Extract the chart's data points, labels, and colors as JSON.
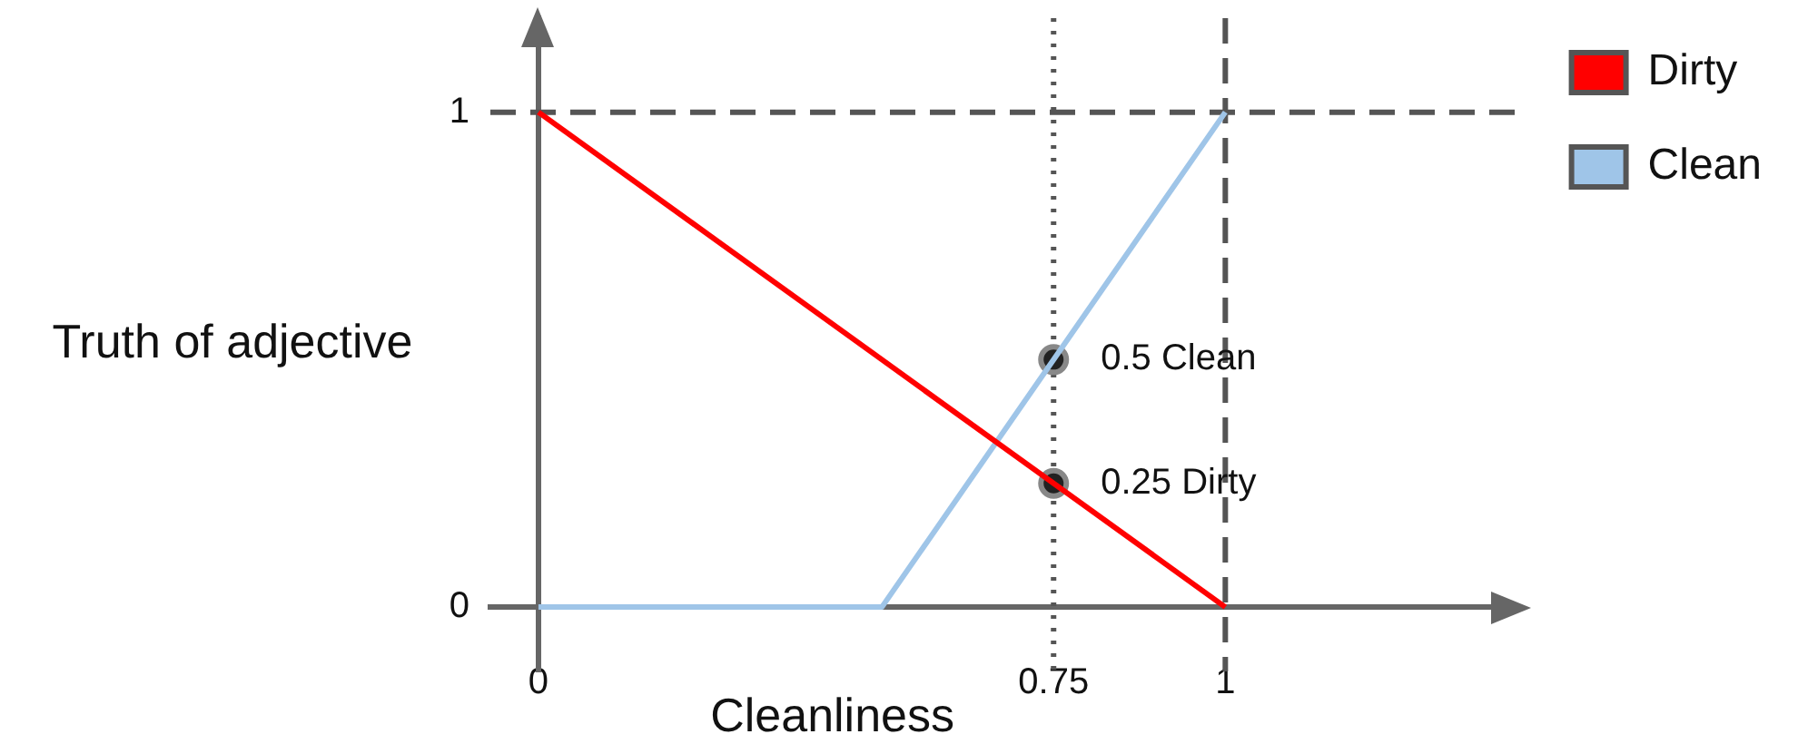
{
  "chart_data": {
    "type": "line",
    "xlabel": "Cleanliness",
    "ylabel": "Truth of adjective",
    "xlim": [
      -0.07,
      1.43
    ],
    "ylim": [
      -0.13,
      1.19
    ],
    "xticks": [
      0,
      0.75,
      1
    ],
    "yticks": [
      0,
      1
    ],
    "grid": false,
    "legend": "right",
    "marker": "none",
    "line_style": "solid",
    "series": [
      {
        "name": "Dirty",
        "color": "#ff0000",
        "x": [
          0,
          1
        ],
        "values": [
          1,
          0
        ]
      },
      {
        "name": "Clean",
        "color": "#9fc5e8",
        "x": [
          0,
          0.5,
          1
        ],
        "values": [
          0,
          0,
          1
        ]
      },
      {
        "type": "scatter",
        "color": "#222222",
        "x": [
          0.75,
          0.75
        ],
        "values": [
          0.5,
          0.25
        ],
        "marker": "circle"
      }
    ],
    "ref_lines": [
      {
        "axis": "y",
        "value": 1,
        "color": "#555555",
        "line_style": "dashed"
      },
      {
        "axis": "x",
        "value": 1,
        "color": "#555555",
        "line_style": "dashed"
      },
      {
        "axis": "x",
        "value": 0.75,
        "color": "#555555",
        "line_style": "dotted"
      }
    ],
    "annotations": [
      {
        "text": "0.5 Clean",
        "x": 0.75,
        "y": 0.5
      },
      {
        "text": "0.25 Dirty",
        "x": 0.75,
        "y": 0.25
      }
    ]
  }
}
